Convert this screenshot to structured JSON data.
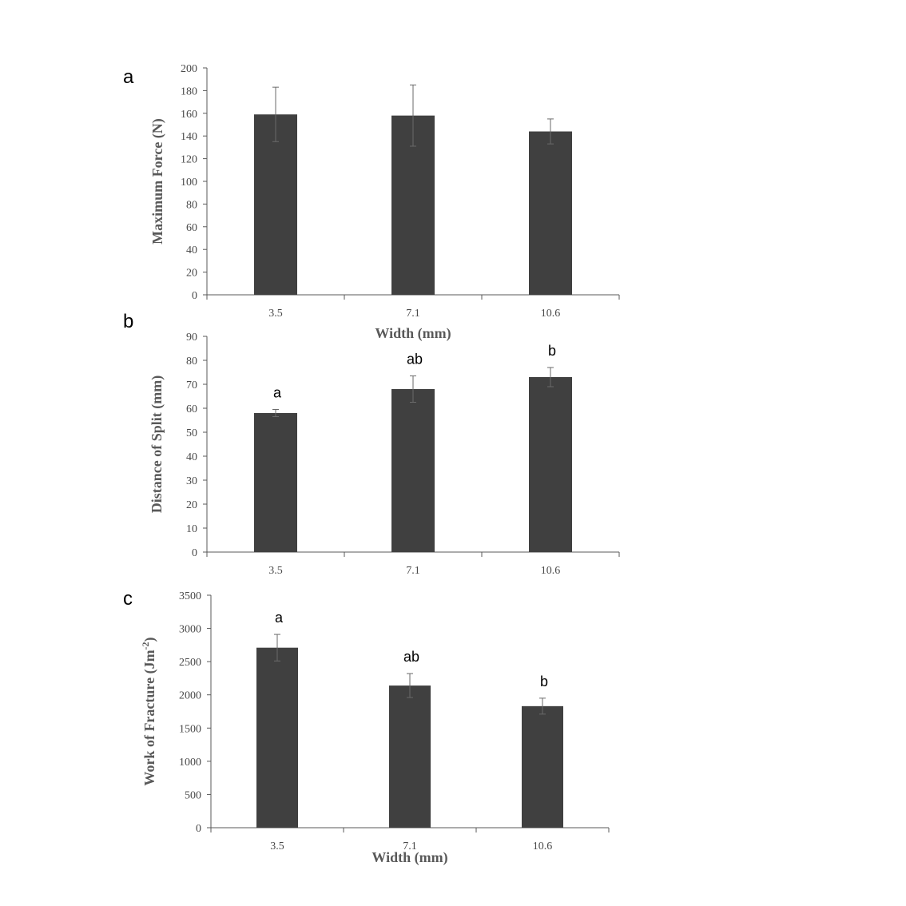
{
  "chart_data": [
    {
      "type": "bar",
      "panel": "a",
      "categories": [
        "3.5",
        "7.1",
        "10.6"
      ],
      "values": [
        159,
        158,
        144
      ],
      "errors": [
        24,
        27,
        11
      ],
      "significance": [
        "",
        "",
        ""
      ],
      "xlabel": "Width  (mm)",
      "ylabel": "Maximum  Force (N)",
      "ylim": [
        0,
        200
      ],
      "yticks": [
        0,
        20,
        40,
        60,
        80,
        100,
        120,
        140,
        160,
        180,
        200
      ],
      "bar_color": "#404040"
    },
    {
      "type": "bar",
      "panel": "b",
      "categories": [
        "3.5",
        "7.1",
        "10.6"
      ],
      "values": [
        58,
        68,
        73
      ],
      "errors": [
        1.5,
        5.5,
        4
      ],
      "significance": [
        "a",
        "ab",
        "b"
      ],
      "xlabel": "",
      "ylabel": "Distance of Split  (mm)",
      "ylim": [
        0,
        90
      ],
      "yticks": [
        0,
        10,
        20,
        30,
        40,
        50,
        60,
        70,
        80,
        90
      ],
      "bar_color": "#404040"
    },
    {
      "type": "bar",
      "panel": "c",
      "categories": [
        "3.5",
        "7.1",
        "10.6"
      ],
      "values": [
        2710,
        2140,
        1830
      ],
      "errors": [
        200,
        180,
        120
      ],
      "significance": [
        "a",
        "ab",
        "b"
      ],
      "xlabel": "Width  (mm)",
      "ylabel": "Work of Fracture (Jm",
      "ylabel_sup": "-2",
      "ylabel_end": ")",
      "ylim": [
        0,
        3500
      ],
      "yticks": [
        0,
        500,
        1000,
        1500,
        2000,
        2500,
        3000,
        3500
      ],
      "bar_color": "#404040"
    }
  ]
}
